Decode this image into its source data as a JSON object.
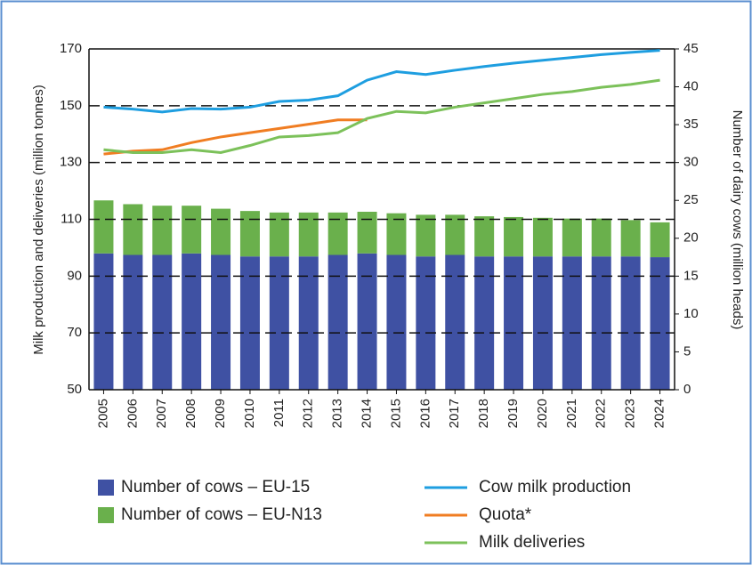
{
  "chart_data": {
    "type": "bar",
    "stacked": true,
    "y_label": "Milk production and deliveries (million tonnes)",
    "y2_label": "Number of dairy cows (million heads)",
    "categories": [
      "2005",
      "2006",
      "2007",
      "2008",
      "2009",
      "2010",
      "2011",
      "2012",
      "2013",
      "2014",
      "2015",
      "2016",
      "2017",
      "2018",
      "2019",
      "2020",
      "2021",
      "2022",
      "2023",
      "2024"
    ],
    "ylim": [
      50,
      170
    ],
    "yticks": [
      50,
      70,
      90,
      110,
      130,
      150,
      170
    ],
    "y2lim": [
      0,
      45
    ],
    "y2ticks": [
      0,
      5,
      10,
      15,
      20,
      25,
      30,
      35,
      40,
      45
    ],
    "grid": true,
    "series": [
      {
        "name": "Number of cows – EU-15",
        "type": "bar",
        "axis": "y2",
        "color": "#3f51a3",
        "values": [
          18.0,
          17.8,
          17.8,
          18.0,
          17.8,
          17.6,
          17.6,
          17.6,
          17.8,
          18.0,
          17.8,
          17.6,
          17.8,
          17.6,
          17.6,
          17.6,
          17.6,
          17.6,
          17.6,
          17.5
        ]
      },
      {
        "name": "Number of cows – EU-N13",
        "type": "bar",
        "axis": "y2",
        "color": "#6ab04c",
        "values": [
          7.0,
          6.7,
          6.5,
          6.3,
          6.1,
          6.0,
          5.8,
          5.8,
          5.6,
          5.5,
          5.5,
          5.5,
          5.3,
          5.3,
          5.2,
          5.1,
          5.0,
          5.0,
          4.8,
          4.6
        ]
      },
      {
        "name": "Cow milk production",
        "type": "line",
        "axis": "y",
        "color": "#1e9ee0",
        "values": [
          149.5,
          148.8,
          147.8,
          149,
          148.8,
          149.5,
          151.5,
          152,
          153.5,
          159,
          162,
          161,
          162.5,
          163.8,
          165,
          166,
          167,
          168,
          168.8,
          169.5
        ]
      },
      {
        "name": "Quota*",
        "type": "line",
        "axis": "y",
        "color": "#f07d22",
        "values": [
          133,
          134,
          134.5,
          137,
          139,
          140.5,
          142,
          143.5,
          145,
          145,
          null,
          null,
          null,
          null,
          null,
          null,
          null,
          null,
          null,
          null
        ]
      },
      {
        "name": "Milk deliveries",
        "type": "line",
        "axis": "y",
        "color": "#7cc15a",
        "values": [
          134.5,
          133.5,
          133.5,
          134.5,
          133.5,
          136,
          139,
          139.5,
          140.5,
          145.5,
          148,
          147.5,
          149.5,
          151,
          152.5,
          154,
          155,
          156.5,
          157.5,
          159
        ]
      }
    ]
  }
}
